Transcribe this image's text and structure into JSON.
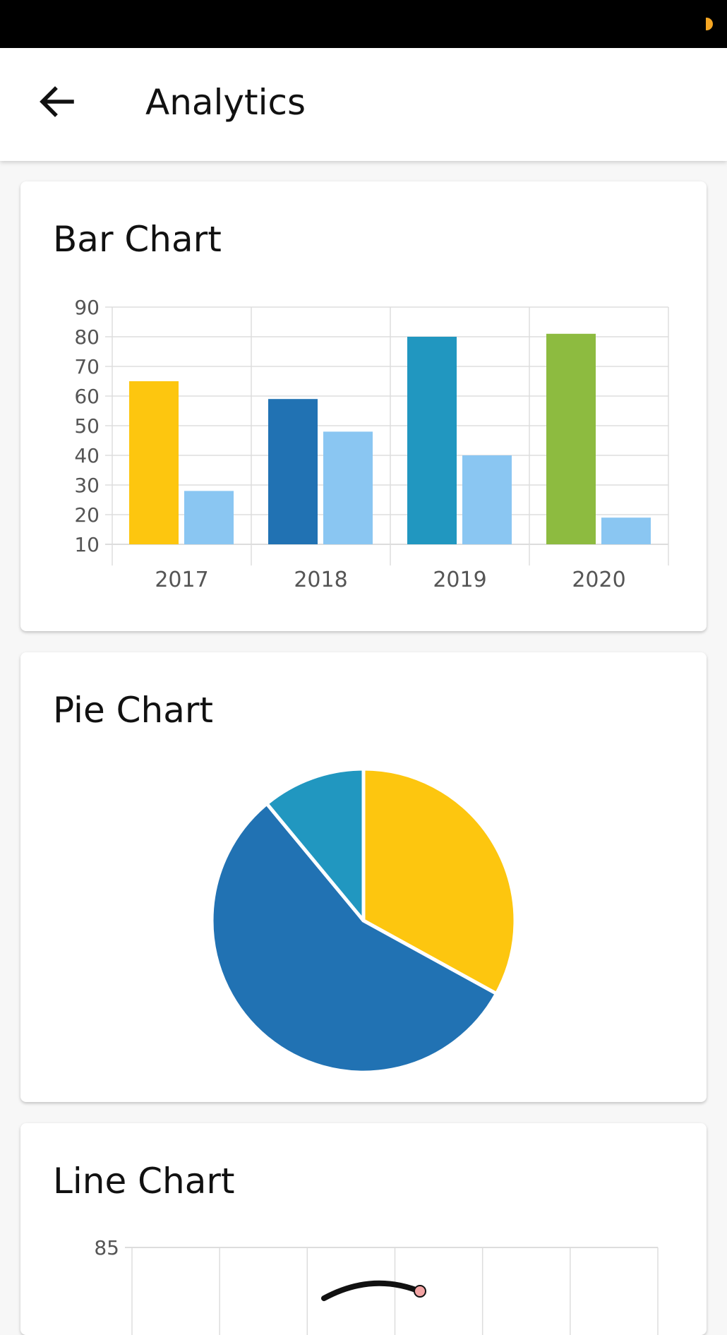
{
  "colors": {
    "status_dot": "#f5a623",
    "grid": "#dddddd",
    "axis_text": "#555555"
  },
  "app_bar": {
    "back_icon": "arrow-left-icon",
    "title": "Analytics"
  },
  "bar_card": {
    "title": "Bar Chart",
    "chart_data": {
      "type": "bar",
      "categories": [
        "2017",
        "2018",
        "2019",
        "2020"
      ],
      "series": [
        {
          "values": [
            65,
            59,
            80,
            81
          ],
          "colors": [
            "#fdc60f",
            "#2172b3",
            "#2197c0",
            "#8dbb40"
          ]
        },
        {
          "values": [
            28,
            48,
            40,
            19
          ],
          "colors": [
            "#8ac6f2",
            "#8ac6f2",
            "#8ac6f2",
            "#8ac6f2"
          ]
        }
      ],
      "yticks": [
        10,
        20,
        30,
        40,
        50,
        60,
        70,
        80,
        90
      ],
      "ylim": [
        10,
        90
      ],
      "grid": true
    }
  },
  "pie_card": {
    "title": "Pie Chart",
    "chart_data": {
      "type": "pie",
      "values": [
        33,
        56,
        11
      ],
      "colors": [
        "#fdc60f",
        "#2172b3",
        "#2197c0"
      ]
    }
  },
  "line_card": {
    "title": "Line Chart",
    "chart_data": {
      "type": "line",
      "yticks": [
        85
      ],
      "grid": true
    }
  }
}
